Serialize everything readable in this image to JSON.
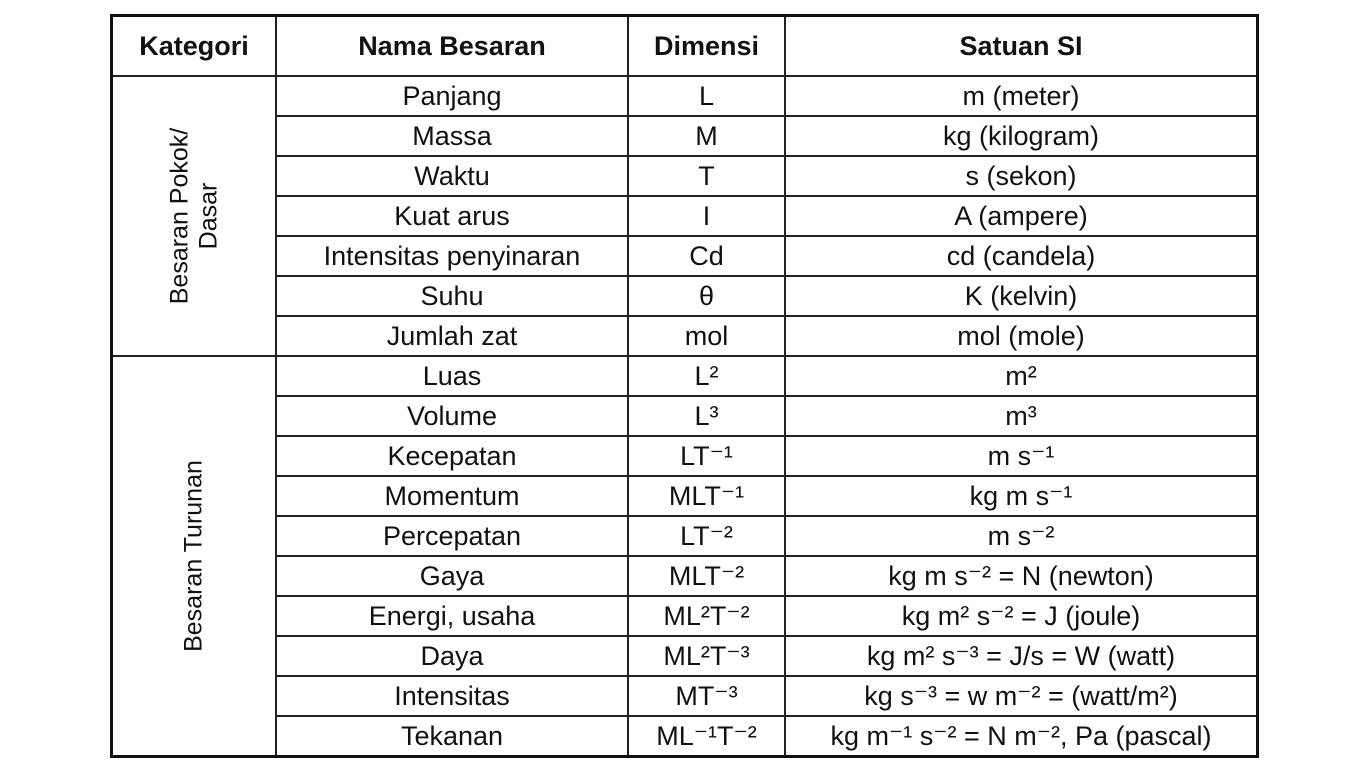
{
  "headers": [
    "Kategori",
    "Nama Besaran",
    "Dimensi",
    "Satuan SI"
  ],
  "groups": [
    {
      "category": "Besaran Pokok/\nDasar",
      "category_lines": [
        "Besaran Pokok/",
        "Dasar"
      ],
      "rows": [
        {
          "name": "Panjang",
          "dim": "L",
          "unit": "m (meter)"
        },
        {
          "name": "Massa",
          "dim": "M",
          "unit": "kg (kilogram)"
        },
        {
          "name": "Waktu",
          "dim": "T",
          "unit": "s (sekon)"
        },
        {
          "name": "Kuat arus",
          "dim": "I",
          "unit": "A (ampere)"
        },
        {
          "name": "Intensitas penyinaran",
          "dim": "Cd",
          "unit": "cd (candela)"
        },
        {
          "name": "Suhu",
          "dim": "θ",
          "unit": "K (kelvin)"
        },
        {
          "name": "Jumlah zat",
          "dim": "mol",
          "unit": "mol (mole)"
        }
      ]
    },
    {
      "category": "Besaran Turunan",
      "category_lines": [
        "Besaran Turunan"
      ],
      "rows": [
        {
          "name": "Luas",
          "dim": "L²",
          "unit": "m²"
        },
        {
          "name": "Volume",
          "dim": "L³",
          "unit": "m³"
        },
        {
          "name": "Kecepatan",
          "dim": "LT⁻¹",
          "unit": "m s⁻¹"
        },
        {
          "name": "Momentum",
          "dim": "MLT⁻¹",
          "unit": "kg m s⁻¹"
        },
        {
          "name": "Percepatan",
          "dim": "LT⁻²",
          "unit": "m s⁻²"
        },
        {
          "name": "Gaya",
          "dim": "MLT⁻²",
          "unit": "kg m s⁻² = N (newton)"
        },
        {
          "name": "Energi, usaha",
          "dim": "ML²T⁻²",
          "unit": "kg m² s⁻² = J (joule)"
        },
        {
          "name": "Daya",
          "dim": "ML²T⁻³",
          "unit": "kg m² s⁻³ = J/s = W (watt)"
        },
        {
          "name": "Intensitas",
          "dim": "MT⁻³",
          "unit": "kg s⁻³ = w m⁻² = (watt/m²)"
        },
        {
          "name": "Tekanan",
          "dim": "ML⁻¹T⁻²",
          "unit": "kg m⁻¹ s⁻² = N m⁻², Pa (pascal)"
        }
      ]
    }
  ]
}
